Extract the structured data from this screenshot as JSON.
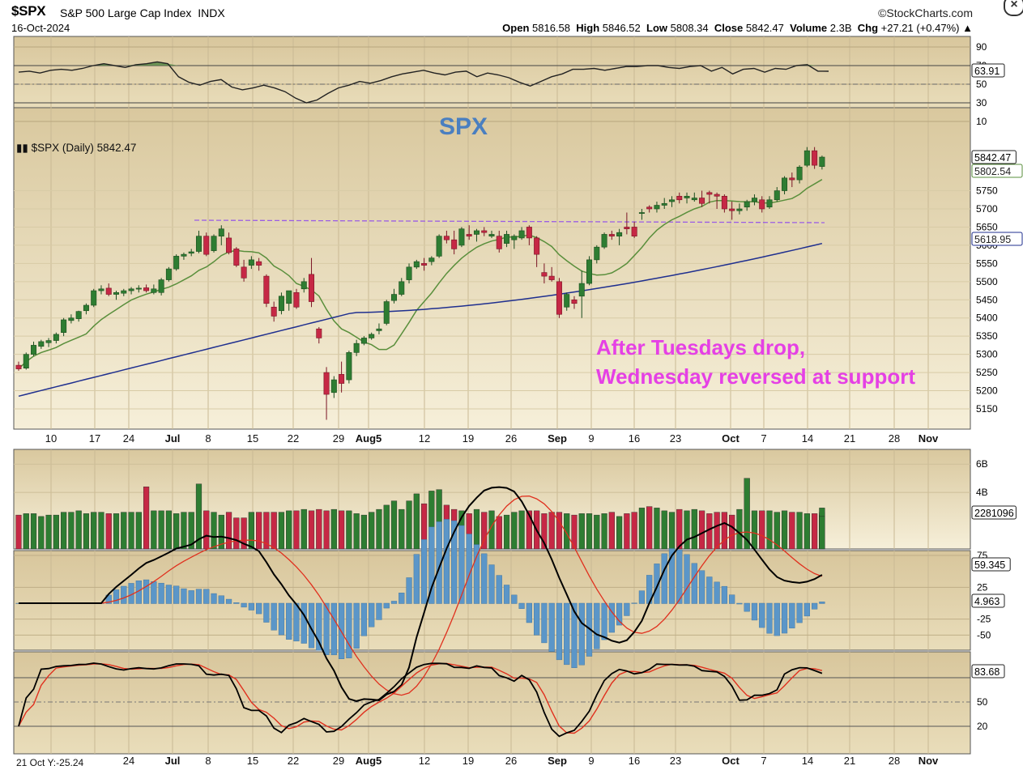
{
  "header": {
    "symbol": "$SPX",
    "name": "S&P 500 Large Cap Index",
    "exchange": "INDX",
    "date": "16-Oct-2024",
    "brand": "©StockCharts.com",
    "open_label": "Open",
    "open": "5816.58",
    "high_label": "High",
    "high": "5846.52",
    "low_label": "Low",
    "low": "5808.34",
    "close_label": "Close",
    "close": "5842.47",
    "volume_label": "Volume",
    "volume": "2.3B",
    "chg_label": "Chg",
    "chg": "+27.21 (+0.47%)",
    "chg_arrow": "▲",
    "close_icon": "close-icon"
  },
  "colors": {
    "up": "#2e7d32",
    "down": "#c62845",
    "sma_short": "#5a8f3c",
    "sma_long": "#1f2f8f",
    "purple_line": "#9b5de5",
    "annot": "#e540e5",
    "spx_title": "#4a7fc0"
  },
  "labels": {
    "spx_title": "SPX",
    "legend": "$SPX (Daily) 5842.47",
    "annotation_line1": "After Tuesdays drop,",
    "annotation_line2": "Wednesday reversed at support",
    "footer_left": "21 Oct Y:-25.24"
  },
  "chart_data": [
    {
      "type": "line",
      "panel": "rsi",
      "ylim": [
        0,
        100
      ],
      "ticks": [
        90,
        70,
        50,
        30,
        10
      ],
      "grid": true,
      "value_label": "63.91",
      "values": [
        63,
        64,
        62,
        65,
        66,
        65,
        67,
        70,
        72,
        70,
        68,
        71,
        72,
        74,
        72,
        58,
        52,
        49,
        53,
        55,
        47,
        44,
        46,
        49,
        46,
        42,
        35,
        30,
        33,
        40,
        46,
        49,
        53,
        51,
        54,
        58,
        61,
        63,
        65,
        62,
        60,
        63,
        64,
        58,
        62,
        60,
        57,
        52,
        48,
        53,
        58,
        61,
        66,
        66,
        67,
        65,
        67,
        69,
        69,
        70,
        70,
        68,
        67,
        69,
        70,
        64,
        68,
        61,
        66,
        67,
        63,
        67,
        66,
        70,
        71,
        64,
        63.91
      ]
    },
    {
      "type": "candlestick",
      "panel": "price",
      "title": "$SPX (Daily) 5842.47",
      "ylim": [
        5100,
        5900
      ],
      "ticks": [
        5150,
        5200,
        5250,
        5300,
        5350,
        5400,
        5450,
        5500,
        5550,
        5600,
        5650,
        5700,
        5750
      ],
      "price_labels": [
        "5842.47",
        "5802.54",
        "5618.95"
      ],
      "x_ticks": [
        "10",
        "17",
        "24",
        "Jul",
        "8",
        "15",
        "22",
        "29",
        "Aug5",
        "12",
        "19",
        "26",
        "Sep",
        "9",
        "16",
        "23",
        "Oct",
        "7",
        "14",
        "21",
        "28",
        "Nov"
      ],
      "support_line": 5665,
      "ohlc": [
        [
          5270,
          5280,
          5255,
          5260
        ],
        [
          5262,
          5305,
          5258,
          5300
        ],
        [
          5300,
          5335,
          5295,
          5325
        ],
        [
          5322,
          5340,
          5315,
          5335
        ],
        [
          5332,
          5345,
          5320,
          5338
        ],
        [
          5338,
          5360,
          5330,
          5355
        ],
        [
          5360,
          5400,
          5350,
          5395
        ],
        [
          5393,
          5410,
          5385,
          5400
        ],
        [
          5398,
          5420,
          5390,
          5418
        ],
        [
          5420,
          5440,
          5410,
          5435
        ],
        [
          5435,
          5480,
          5430,
          5475
        ],
        [
          5475,
          5490,
          5465,
          5480
        ],
        [
          5482,
          5495,
          5460,
          5465
        ],
        [
          5465,
          5475,
          5450,
          5470
        ],
        [
          5468,
          5480,
          5460,
          5475
        ],
        [
          5475,
          5485,
          5465,
          5480
        ],
        [
          5480,
          5490,
          5470,
          5482
        ],
        [
          5483,
          5492,
          5470,
          5475
        ],
        [
          5470,
          5492,
          5465,
          5480
        ],
        [
          5470,
          5510,
          5462,
          5505
        ],
        [
          5505,
          5540,
          5500,
          5535
        ],
        [
          5535,
          5575,
          5530,
          5570
        ],
        [
          5570,
          5580,
          5560,
          5575
        ],
        [
          5578,
          5590,
          5570,
          5582
        ],
        [
          5583,
          5640,
          5578,
          5625
        ],
        [
          5625,
          5635,
          5570,
          5575
        ],
        [
          5585,
          5630,
          5580,
          5625
        ],
        [
          5625,
          5655,
          5600,
          5645
        ],
        [
          5620,
          5635,
          5575,
          5580
        ],
        [
          5590,
          5595,
          5540,
          5545
        ],
        [
          5540,
          5560,
          5500,
          5510
        ],
        [
          5545,
          5570,
          5535,
          5560
        ],
        [
          5555,
          5565,
          5530,
          5545
        ],
        [
          5515,
          5520,
          5430,
          5440
        ],
        [
          5430,
          5445,
          5390,
          5405
        ],
        [
          5420,
          5470,
          5410,
          5460
        ],
        [
          5440,
          5470,
          5420,
          5475
        ],
        [
          5470,
          5480,
          5425,
          5430
        ],
        [
          5480,
          5510,
          5470,
          5500
        ],
        [
          5520,
          5565,
          5430,
          5445
        ],
        [
          5370,
          5375,
          5330,
          5345
        ],
        [
          5250,
          5265,
          5120,
          5190
        ],
        [
          5195,
          5240,
          5180,
          5230
        ],
        [
          5245,
          5280,
          5195,
          5220
        ],
        [
          5230,
          5310,
          5220,
          5305
        ],
        [
          5305,
          5340,
          5295,
          5330
        ],
        [
          5330,
          5350,
          5325,
          5345
        ],
        [
          5345,
          5360,
          5340,
          5355
        ],
        [
          5365,
          5385,
          5355,
          5370
        ],
        [
          5385,
          5450,
          5380,
          5445
        ],
        [
          5448,
          5480,
          5440,
          5465
        ],
        [
          5465,
          5510,
          5460,
          5500
        ],
        [
          5505,
          5550,
          5495,
          5540
        ],
        [
          5540,
          5560,
          5535,
          5555
        ],
        [
          5550,
          5565,
          5530,
          5545
        ],
        [
          5555,
          5570,
          5545,
          5565
        ],
        [
          5570,
          5630,
          5565,
          5625
        ],
        [
          5625,
          5640,
          5605,
          5615
        ],
        [
          5615,
          5640,
          5575,
          5590
        ],
        [
          5600,
          5650,
          5595,
          5645
        ],
        [
          5630,
          5655,
          5615,
          5625
        ],
        [
          5630,
          5645,
          5610,
          5640
        ],
        [
          5640,
          5650,
          5625,
          5635
        ],
        [
          5625,
          5640,
          5620,
          5630
        ],
        [
          5625,
          5640,
          5580,
          5590
        ],
        [
          5605,
          5640,
          5595,
          5630
        ],
        [
          5615,
          5630,
          5590,
          5625
        ],
        [
          5620,
          5650,
          5615,
          5640
        ],
        [
          5650,
          5655,
          5600,
          5620
        ],
        [
          5620,
          5625,
          5540,
          5575
        ],
        [
          5525,
          5550,
          5495,
          5515
        ],
        [
          5515,
          5540,
          5500,
          5505
        ],
        [
          5500,
          5510,
          5400,
          5410
        ],
        [
          5430,
          5470,
          5420,
          5465
        ],
        [
          5450,
          5460,
          5425,
          5440
        ],
        [
          5460,
          5530,
          5400,
          5495
        ],
        [
          5495,
          5570,
          5490,
          5560
        ],
        [
          5560,
          5600,
          5550,
          5595
        ],
        [
          5595,
          5635,
          5590,
          5630
        ],
        [
          5630,
          5640,
          5615,
          5625
        ],
        [
          5625,
          5645,
          5600,
          5635
        ],
        [
          5650,
          5690,
          5630,
          5645
        ],
        [
          5650,
          5665,
          5620,
          5625
        ],
        [
          5690,
          5700,
          5670,
          5690
        ],
        [
          5705,
          5710,
          5690,
          5700
        ],
        [
          5700,
          5720,
          5690,
          5710
        ],
        [
          5710,
          5730,
          5700,
          5715
        ],
        [
          5720,
          5735,
          5705,
          5725
        ],
        [
          5735,
          5745,
          5715,
          5725
        ],
        [
          5730,
          5745,
          5715,
          5735
        ],
        [
          5725,
          5745,
          5720,
          5730
        ],
        [
          5730,
          5750,
          5705,
          5715
        ],
        [
          5745,
          5750,
          5715,
          5740
        ],
        [
          5740,
          5745,
          5700,
          5735
        ],
        [
          5735,
          5740,
          5690,
          5700
        ],
        [
          5700,
          5720,
          5670,
          5695
        ],
        [
          5695,
          5715,
          5685,
          5700
        ],
        [
          5705,
          5725,
          5695,
          5720
        ],
        [
          5720,
          5740,
          5710,
          5730
        ],
        [
          5725,
          5735,
          5690,
          5700
        ],
        [
          5705,
          5735,
          5700,
          5725
        ],
        [
          5725,
          5760,
          5720,
          5750
        ],
        [
          5750,
          5790,
          5740,
          5785
        ],
        [
          5785,
          5800,
          5760,
          5780
        ],
        [
          5780,
          5820,
          5770,
          5815
        ],
        [
          5820,
          5870,
          5815,
          5860
        ],
        [
          5860,
          5870,
          5810,
          5820
        ],
        [
          5816.58,
          5846.52,
          5808.34,
          5842.47
        ]
      ],
      "sma_short_label": "5802.54",
      "sma_long_label": "5618.95"
    },
    {
      "type": "bar",
      "panel": "volume",
      "ticks": [
        "6B",
        "4B"
      ],
      "value_label": "2281096",
      "values": [
        2.4,
        2.5,
        2.5,
        2.3,
        2.4,
        2.4,
        2.6,
        2.6,
        2.7,
        2.5,
        2.6,
        2.6,
        2.5,
        2.5,
        2.6,
        2.6,
        2.6,
        4.4,
        2.7,
        2.7,
        2.7,
        2.5,
        2.6,
        2.6,
        4.6,
        2.7,
        2.6,
        2.4,
        2.6,
        2.2,
        2.2,
        2.6,
        2.6,
        2.6,
        2.6,
        2.6,
        2.7,
        2.7,
        2.8,
        2.7,
        2.8,
        2.7,
        2.8,
        2.7,
        2.7,
        2.5,
        2.4,
        2.6,
        2.8,
        3.1,
        3.4,
        2.8,
        3.4,
        3.9,
        3.2,
        4.1,
        4.2,
        3.1,
        2.8,
        2.7,
        2.5,
        2.8,
        2.6,
        2.7,
        2.3,
        2.4,
        2.6,
        2.7,
        2.7,
        2.7,
        2.5,
        2.6,
        2.6,
        2.5,
        2.4,
        2.5,
        2.5,
        2.4,
        2.5,
        2.6,
        2.3,
        2.5,
        2.6,
        2.9,
        3.0,
        2.9,
        2.7,
        2.6,
        2.8,
        2.7,
        2.8,
        2.7,
        2.5,
        2.6,
        2.6,
        2.4,
        2.8,
        5.0,
        2.7,
        2.7,
        2.7,
        2.6,
        2.7,
        2.6,
        2.6,
        2.5,
        2.5,
        2.6,
        2.4,
        2.4,
        2.5,
        2.4,
        2.9,
        2.3
      ]
    },
    {
      "type": "line",
      "panel": "macd",
      "ticks": [
        "75",
        "25",
        "-25",
        "-50"
      ],
      "value_labels": [
        "59.345",
        "4.963"
      ]
    },
    {
      "type": "line",
      "panel": "stochastics",
      "ticks": [
        "50",
        "20"
      ],
      "value_label": "83.68"
    }
  ]
}
